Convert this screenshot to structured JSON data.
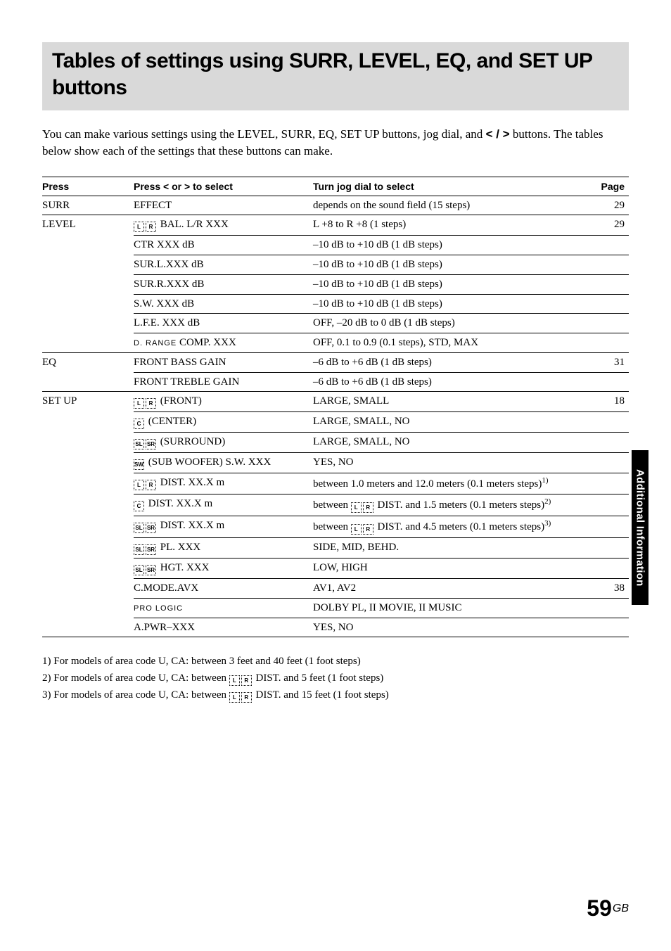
{
  "title": "Tables of settings using SURR, LEVEL, EQ, and SET UP buttons",
  "intro_a": "You can make various settings using the LEVEL, SURR, EQ, SET UP buttons, jog dial, and ",
  "intro_glyph": "< / >",
  "intro_b": " buttons.  The tables below show each of the settings that these buttons can make.",
  "headers": {
    "press": "Press",
    "select_a": "Press ",
    "select_lt": "<",
    "select_mid": " or ",
    "select_gt": ">",
    "select_b": " to select",
    "turn": "Turn jog dial to select",
    "page": "Page"
  },
  "rows": [
    {
      "press": "SURR",
      "p_border": true,
      "sel": "EFFECT",
      "sel_pre": "",
      "turn": "depends on the sound field (15 steps)",
      "page": "29",
      "border": true
    },
    {
      "press": "LEVEL",
      "p_border": false,
      "sel": " BAL. L/R XXX",
      "sel_pre": "LR",
      "turn": "L +8 to R +8 (1 steps)",
      "page": "29",
      "border": true
    },
    {
      "press": "",
      "p_border": false,
      "sel": "CTR XXX dB",
      "sel_pre": "",
      "turn": "–10 dB to +10 dB (1 dB steps)",
      "page": "",
      "border": true
    },
    {
      "press": "",
      "p_border": false,
      "sel": "SUR.L.XXX dB",
      "sel_pre": "",
      "turn": "–10 dB to +10 dB (1 dB steps)",
      "page": "",
      "border": true
    },
    {
      "press": "",
      "p_border": false,
      "sel": "SUR.R.XXX dB",
      "sel_pre": "",
      "turn": "–10 dB to +10 dB (1 dB steps)",
      "page": "",
      "border": true
    },
    {
      "press": "",
      "p_border": false,
      "sel": "S.W. XXX dB",
      "sel_pre": "",
      "turn": "–10 dB to +10 dB (1 dB steps)",
      "page": "",
      "border": true
    },
    {
      "press": "",
      "p_border": false,
      "sel": "L.F.E. XXX dB",
      "sel_pre": "",
      "turn": "OFF, –20 dB to 0 dB (1 dB steps)",
      "page": "",
      "border": true
    },
    {
      "press": "",
      "p_border": true,
      "sel": " COMP. XXX",
      "sel_pre": "DRANGE",
      "turn": "OFF, 0.1 to 0.9 (0.1 steps), STD, MAX",
      "page": "",
      "border": true
    },
    {
      "press": "EQ",
      "p_border": false,
      "sel": "FRONT BASS GAIN",
      "sel_pre": "",
      "turn": "–6 dB to +6 dB (1 dB steps)",
      "page": "31",
      "border": true
    },
    {
      "press": "",
      "p_border": true,
      "sel": "FRONT TREBLE GAIN",
      "sel_pre": "",
      "turn": "–6 dB to +6 dB (1 dB steps)",
      "page": "",
      "border": true
    },
    {
      "press": "SET UP",
      "p_border": false,
      "sel": " (FRONT)",
      "sel_pre": "LR",
      "turn": "LARGE, SMALL",
      "page": "18",
      "border": true
    },
    {
      "press": "",
      "p_border": false,
      "sel": " (CENTER)",
      "sel_pre": "C",
      "turn": "LARGE, SMALL, NO",
      "page": "",
      "border": true
    },
    {
      "press": "",
      "p_border": false,
      "sel": " (SURROUND)",
      "sel_pre": "SLSR",
      "turn": "LARGE, SMALL, NO",
      "page": "",
      "border": true
    },
    {
      "press": "",
      "p_border": false,
      "sel": " (SUB WOOFER) S.W. XXX",
      "sel_pre": "SW",
      "turn": "YES, NO",
      "page": "",
      "border": true
    },
    {
      "press": "",
      "p_border": false,
      "sel": " DIST. XX.X m",
      "sel_pre": "LR",
      "turn": "between 1.0 meters and 12.0 meters (0.1 meters steps)",
      "sup": "1)",
      "page": "",
      "border": true
    },
    {
      "press": "",
      "p_border": false,
      "sel": " DIST. XX.X m",
      "sel_pre": "C",
      "turn_prefix": "between ",
      "turn_icons": "LR",
      "turn_suffix": " DIST. and 1.5 meters (0.1 meters steps)",
      "sup": "2)",
      "page": "",
      "border": true
    },
    {
      "press": "",
      "p_border": false,
      "sel": " DIST. XX.X m",
      "sel_pre": "SLSR",
      "turn_prefix": "between ",
      "turn_icons": "LR",
      "turn_suffix": " DIST. and 4.5 meters (0.1 meters steps)",
      "sup": "3)",
      "page": "",
      "border": true
    },
    {
      "press": "",
      "p_border": false,
      "sel": " PL. XXX",
      "sel_pre": "SLSR",
      "turn": "SIDE, MID, BEHD.",
      "page": "",
      "border": true
    },
    {
      "press": "",
      "p_border": false,
      "sel": " HGT. XXX",
      "sel_pre": "SLSR",
      "turn": "LOW, HIGH",
      "page": "",
      "border": true
    },
    {
      "press": "",
      "p_border": false,
      "sel": "C.MODE.AVX",
      "sel_pre": "",
      "turn": "AV1, AV2",
      "page": "38",
      "border": true
    },
    {
      "press": "",
      "p_border": false,
      "sel": "",
      "sel_pre": "PROLOGIC",
      "turn": "DOLBY PL, II MOVIE, II MUSIC",
      "page": "",
      "border": true
    },
    {
      "press": "",
      "p_border": true,
      "sel": "A.PWR–XXX",
      "sel_pre": "",
      "turn": "YES, NO",
      "page": "",
      "border": true
    }
  ],
  "footnotes": {
    "f1": "1)  For models of area code U, CA: between 3 feet and 40 feet (1 foot steps)",
    "f2a": "2)  For models of area code U, CA: between ",
    "f2b": " DIST. and 5 feet (1 foot steps)",
    "f3a": "3)  For models of area code U, CA: between ",
    "f3b": " DIST. and 15 feet (1 foot steps)"
  },
  "side_tab": "Additional Information",
  "page_num": "59",
  "page_gb": "GB"
}
